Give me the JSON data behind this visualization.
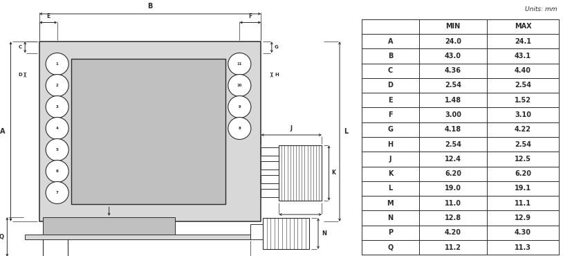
{
  "table_headers": [
    "",
    "MIN",
    "MAX"
  ],
  "table_rows": [
    [
      "A",
      "24.0",
      "24.1"
    ],
    [
      "B",
      "43.0",
      "43.1"
    ],
    [
      "C",
      "4.36",
      "4.40"
    ],
    [
      "D",
      "2.54",
      "2.54"
    ],
    [
      "E",
      "1.48",
      "1.52"
    ],
    [
      "F",
      "3.00",
      "3.10"
    ],
    [
      "G",
      "4.18",
      "4.22"
    ],
    [
      "H",
      "2.54",
      "2.54"
    ],
    [
      "J",
      "12.4",
      "12.5"
    ],
    [
      "K",
      "6.20",
      "6.20"
    ],
    [
      "L",
      "19.0",
      "19.1"
    ],
    [
      "M",
      "11.0",
      "11.1"
    ],
    [
      "N",
      "12.8",
      "12.9"
    ],
    [
      "P",
      "4.20",
      "4.30"
    ],
    [
      "Q",
      "11.2",
      "11.3"
    ]
  ],
  "units_text": "Units: mm",
  "line_color": "#2a2a2a",
  "bg_color": "#ffffff",
  "pcb_fill": "#d8d8d8",
  "chip_fill": "#c0c0c0",
  "dim_color": "#2a2a2a"
}
